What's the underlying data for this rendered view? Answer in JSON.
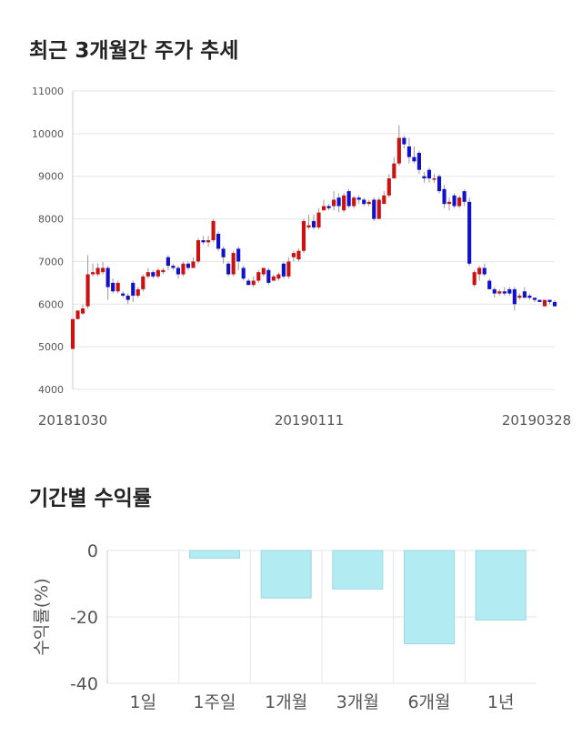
{
  "sections": {
    "price_title": "최근 3개월간 주가 추세",
    "returns_title": "기간별 수익률"
  },
  "colors": {
    "up": "#cc1111",
    "down": "#1111cc",
    "grid": "#e6e6e6",
    "bar_fill": "#b3ebf2",
    "bar_stroke": "#9dd6e0"
  },
  "chart_data": [
    {
      "type": "candlestick",
      "title": "최근 3개월간 주가 추세",
      "ylim": [
        4000,
        11000
      ],
      "y_ticks": [
        4000,
        5000,
        6000,
        7000,
        8000,
        9000,
        10000,
        11000
      ],
      "x_tick_labels": [
        "20181030",
        "20190111",
        "20190328"
      ],
      "grid": true,
      "ohlc": [
        [
          4950,
          5650,
          5650,
          4950
        ],
        [
          5650,
          5850,
          5850,
          5650
        ],
        [
          5780,
          5900,
          5990,
          5750
        ],
        [
          5950,
          6700,
          7150,
          5900
        ],
        [
          6700,
          6750,
          6950,
          6650
        ],
        [
          6700,
          6850,
          6960,
          6650
        ],
        [
          6750,
          6850,
          6990,
          6700
        ],
        [
          6850,
          6400,
          6900,
          6100
        ],
        [
          6500,
          6300,
          6600,
          6250
        ],
        [
          6300,
          6500,
          6550,
          6250
        ],
        [
          6250,
          6200,
          6300,
          6150
        ],
        [
          6200,
          6100,
          6250,
          6000
        ],
        [
          6500,
          6200,
          6550,
          6050
        ],
        [
          6200,
          6350,
          6400,
          6150
        ],
        [
          6350,
          6650,
          6700,
          6300
        ],
        [
          6650,
          6750,
          6850,
          6600
        ],
        [
          6750,
          6650,
          6800,
          6600
        ],
        [
          6650,
          6800,
          6850,
          6600
        ],
        [
          6750,
          6800,
          6850,
          6700
        ],
        [
          7100,
          6900,
          7150,
          6800
        ],
        [
          6900,
          6850,
          6950,
          6800
        ],
        [
          6850,
          6700,
          6900,
          6600
        ],
        [
          6700,
          6950,
          7000,
          6650
        ],
        [
          6950,
          6850,
          7000,
          6800
        ],
        [
          6850,
          7000,
          7100,
          6850
        ],
        [
          7000,
          7500,
          7550,
          6950
        ],
        [
          7500,
          7450,
          7600,
          7400
        ],
        [
          7450,
          7500,
          7600,
          7350
        ],
        [
          7500,
          7950,
          8000,
          7450
        ],
        [
          7650,
          7300,
          7700,
          7250
        ],
        [
          7300,
          7100,
          7350,
          6950
        ],
        [
          6950,
          6700,
          7000,
          6650
        ],
        [
          6700,
          7200,
          7250,
          6650
        ],
        [
          7300,
          7000,
          7350,
          6800
        ],
        [
          6850,
          6600,
          6900,
          6550
        ],
        [
          6550,
          6450,
          6600,
          6450
        ],
        [
          6450,
          6550,
          6650,
          6400
        ],
        [
          6550,
          6750,
          6800,
          6500
        ],
        [
          6700,
          6850,
          6850,
          6650
        ],
        [
          6800,
          6500,
          6850,
          6450
        ],
        [
          6550,
          6650,
          6700,
          6550
        ],
        [
          6600,
          6700,
          6750,
          6550
        ],
        [
          6950,
          6650,
          7000,
          6600
        ],
        [
          6650,
          7000,
          7100,
          6600
        ],
        [
          7100,
          7200,
          7250,
          7000
        ],
        [
          7050,
          7250,
          7300,
          7000
        ],
        [
          7250,
          7950,
          8000,
          7200
        ],
        [
          7800,
          7850,
          8100,
          7750
        ],
        [
          7950,
          7800,
          8100,
          7750
        ],
        [
          7800,
          8150,
          8250,
          7750
        ],
        [
          8200,
          8300,
          8450,
          8200
        ],
        [
          8300,
          8250,
          8350,
          8200
        ],
        [
          8300,
          8450,
          8650,
          8200
        ],
        [
          8500,
          8300,
          8600,
          8150
        ],
        [
          8200,
          8550,
          8600,
          8150
        ],
        [
          8650,
          8300,
          8700,
          8250
        ],
        [
          8300,
          8500,
          8550,
          8250
        ],
        [
          8500,
          8450,
          8550,
          8350
        ],
        [
          8450,
          8350,
          8500,
          8300
        ],
        [
          8350,
          8400,
          8450,
          8300
        ],
        [
          8450,
          8000,
          8500,
          7950
        ],
        [
          8000,
          8450,
          8500,
          8000
        ],
        [
          8350,
          8550,
          8650,
          8350
        ],
        [
          8550,
          8950,
          9050,
          8500
        ],
        [
          8950,
          9300,
          9450,
          8950
        ],
        [
          9300,
          9900,
          10200,
          9250
        ],
        [
          9900,
          9750,
          9950,
          9650
        ],
        [
          9700,
          9450,
          9900,
          9300
        ],
        [
          9450,
          9350,
          9700,
          9300
        ],
        [
          9550,
          9150,
          9600,
          9050
        ],
        [
          9000,
          8950,
          9100,
          8850
        ],
        [
          9150,
          8950,
          9200,
          8850
        ],
        [
          8950,
          8950,
          9050,
          8850
        ],
        [
          9000,
          8650,
          9050,
          8600
        ],
        [
          8700,
          8350,
          8800,
          8250
        ],
        [
          8350,
          8400,
          8500,
          8200
        ],
        [
          8550,
          8300,
          8600,
          8250
        ],
        [
          8300,
          8500,
          8550,
          8250
        ],
        [
          8650,
          8400,
          8700,
          8300
        ],
        [
          8400,
          6950,
          8500,
          6900
        ],
        [
          6450,
          6750,
          6800,
          6400
        ],
        [
          6700,
          6850,
          6900,
          6550
        ],
        [
          6850,
          6700,
          6950,
          6650
        ],
        [
          6550,
          6350,
          6600,
          6350
        ],
        [
          6350,
          6250,
          6400,
          6150
        ],
        [
          6250,
          6300,
          6350,
          6200
        ],
        [
          6300,
          6250,
          6400,
          6200
        ],
        [
          6350,
          6250,
          6400,
          6200
        ],
        [
          6350,
          6000,
          6400,
          5850
        ],
        [
          6150,
          6200,
          6250,
          6100
        ],
        [
          6300,
          6150,
          6400,
          6150
        ],
        [
          6200,
          6150,
          6250,
          6100
        ],
        [
          6150,
          6100,
          6150,
          6050
        ],
        [
          6100,
          6050,
          6100,
          6050
        ],
        [
          5950,
          6100,
          6100,
          5950
        ],
        [
          6100,
          6050,
          6100,
          6000
        ],
        [
          6050,
          5950,
          6100,
          5950
        ]
      ]
    },
    {
      "type": "bar",
      "title": "기간별 수익률",
      "ylabel": "수익률(%)",
      "categories": [
        "1일",
        "1주일",
        "1개월",
        "3개월",
        "6개월",
        "1년"
      ],
      "values": [
        0,
        -2.3,
        -14.3,
        -11.6,
        -28.1,
        -20.9
      ],
      "ylim": [
        -40,
        0
      ],
      "y_ticks": [
        0,
        -20,
        -40
      ],
      "grid": true
    }
  ]
}
